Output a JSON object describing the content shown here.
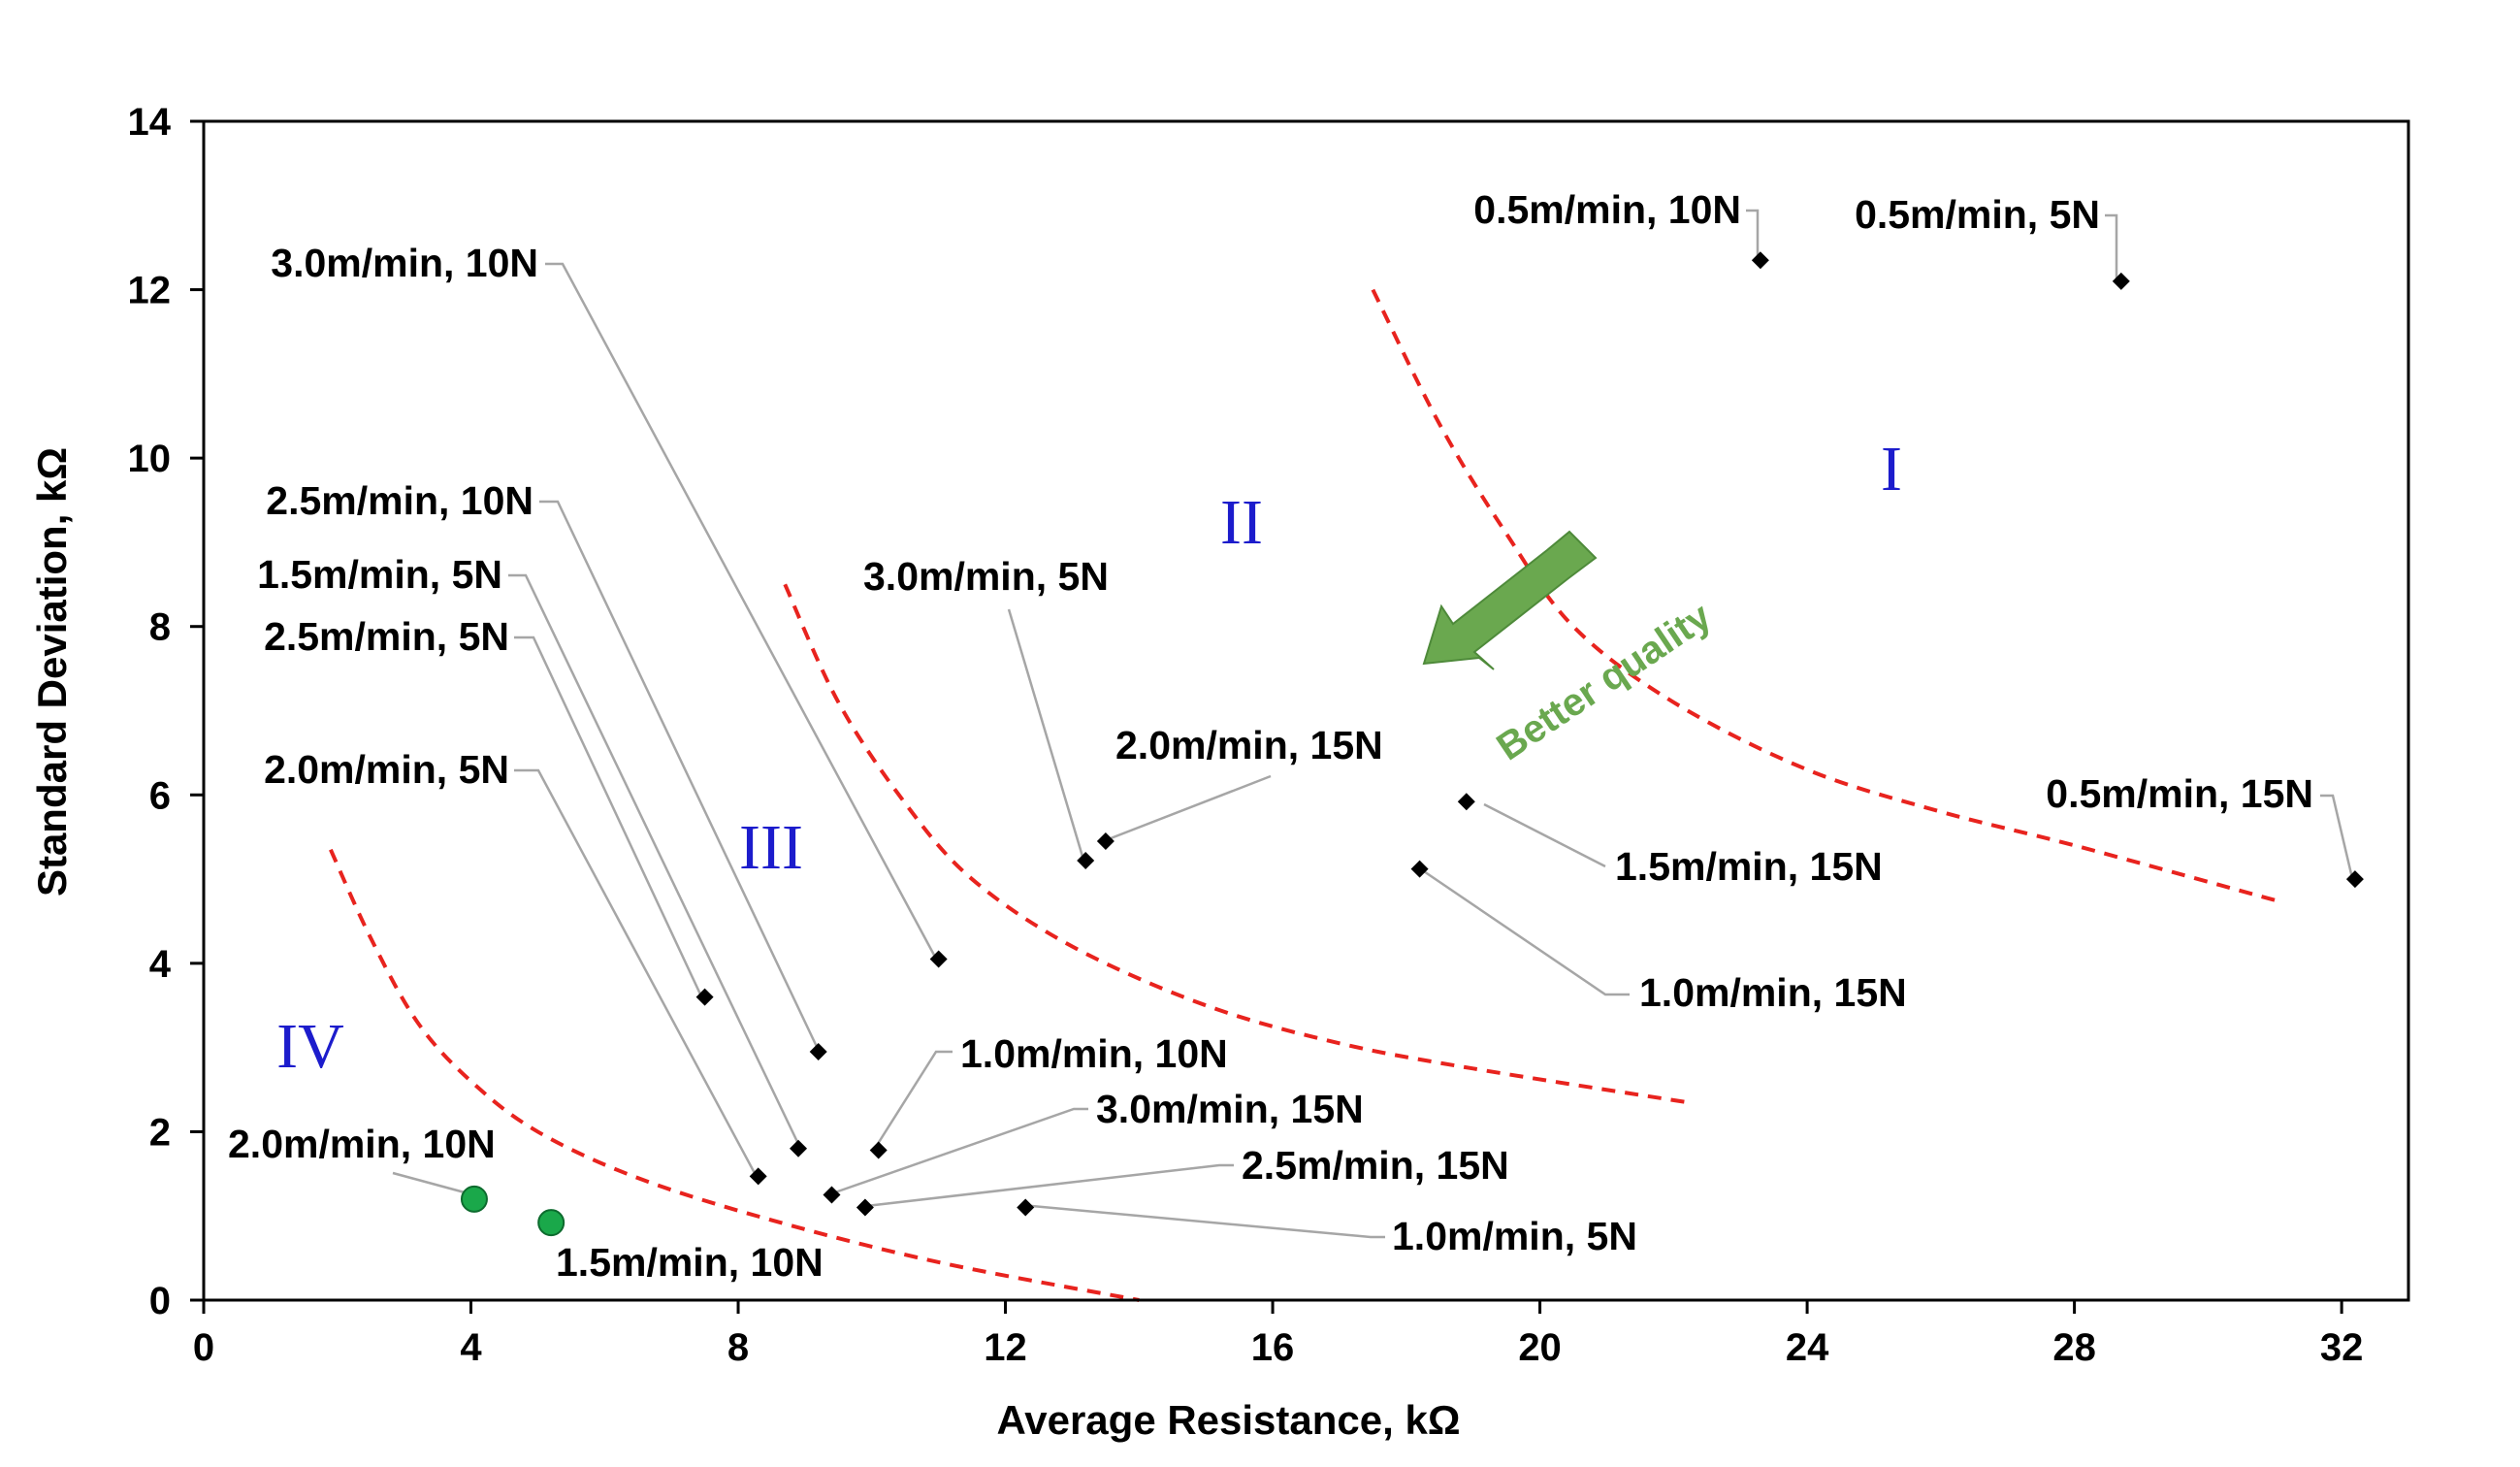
{
  "chart_data": {
    "type": "scatter",
    "title": "",
    "xlabel": "Average Resistance, kΩ",
    "ylabel": "Standard Deviation, kΩ",
    "xlim": [
      0,
      33
    ],
    "ylim": [
      0,
      14
    ],
    "xticks": [
      0,
      4,
      8,
      12,
      16,
      20,
      24,
      28,
      32
    ],
    "yticks": [
      0,
      2,
      4,
      6,
      8,
      10,
      12,
      14
    ],
    "grid": false,
    "colors": {
      "marker": "#000000",
      "highlight_marker": "#1aa84a",
      "boundary": "#e8231e",
      "leader": "#a6a6a6",
      "region_text": "#1c1ccc",
      "annotation": "#6aa84f"
    },
    "points": [
      {
        "label": "0.5m/min, 10N",
        "x": 23.3,
        "y": 12.35,
        "marker": "diamond"
      },
      {
        "label": "0.5m/min, 5N",
        "x": 28.7,
        "y": 12.1,
        "marker": "diamond"
      },
      {
        "label": "0.5m/min, 15N",
        "x": 32.2,
        "y": 5.0,
        "marker": "diamond"
      },
      {
        "label": "3.0m/min, 10N",
        "x": 11.0,
        "y": 4.05,
        "marker": "diamond"
      },
      {
        "label": "2.5m/min, 10N",
        "x": 9.2,
        "y": 2.95,
        "marker": "diamond"
      },
      {
        "label": "1.5m/min, 5N",
        "x": 8.9,
        "y": 1.8,
        "marker": "diamond"
      },
      {
        "label": "2.5m/min, 5N",
        "x": 7.5,
        "y": 3.6,
        "marker": "diamond"
      },
      {
        "label": "2.0m/min, 5N",
        "x": 8.3,
        "y": 1.47,
        "marker": "diamond"
      },
      {
        "label": "3.0m/min, 5N",
        "x": 13.2,
        "y": 5.22,
        "marker": "diamond"
      },
      {
        "label": "2.0m/min, 15N",
        "x": 13.5,
        "y": 5.45,
        "marker": "diamond"
      },
      {
        "label": "1.5m/min, 15N",
        "x": 18.9,
        "y": 5.92,
        "marker": "diamond"
      },
      {
        "label": "1.0m/min, 15N",
        "x": 18.2,
        "y": 5.12,
        "marker": "diamond"
      },
      {
        "label": "1.0m/min, 10N",
        "x": 10.1,
        "y": 1.78,
        "marker": "diamond"
      },
      {
        "label": "3.0m/min, 15N",
        "x": 9.4,
        "y": 1.25,
        "marker": "diamond"
      },
      {
        "label": "2.5m/min, 15N",
        "x": 9.9,
        "y": 1.1,
        "marker": "diamond"
      },
      {
        "label": "1.0m/min, 5N",
        "x": 12.3,
        "y": 1.1,
        "marker": "diamond"
      },
      {
        "label": "2.0m/min, 10N",
        "x": 4.05,
        "y": 1.2,
        "marker": "circle"
      },
      {
        "label": "1.5m/min, 10N",
        "x": 5.2,
        "y": 0.92,
        "marker": "circle"
      }
    ],
    "boundaries": [
      {
        "x": [
          17.5,
          18.5,
          19.5,
          20.5,
          22,
          24,
          26,
          28,
          31
        ],
        "y": [
          12.0,
          10.4,
          9.1,
          8.0,
          7.1,
          6.3,
          5.8,
          5.4,
          4.75
        ]
      },
      {
        "x": [
          8.7,
          9.5,
          10.5,
          11.5,
          13,
          15,
          17,
          19,
          22.2
        ],
        "y": [
          8.5,
          7.1,
          5.9,
          5.0,
          4.2,
          3.5,
          3.05,
          2.75,
          2.35
        ]
      },
      {
        "x": [
          1.9,
          2.5,
          3.2,
          4.0,
          5.0,
          6.5,
          8.5,
          11,
          14
        ],
        "y": [
          5.35,
          4.3,
          3.3,
          2.6,
          2.0,
          1.45,
          0.95,
          0.45,
          0.0
        ]
      }
    ],
    "regions": [
      "I",
      "II",
      "III",
      "IV"
    ],
    "annotation": "Better quality"
  }
}
